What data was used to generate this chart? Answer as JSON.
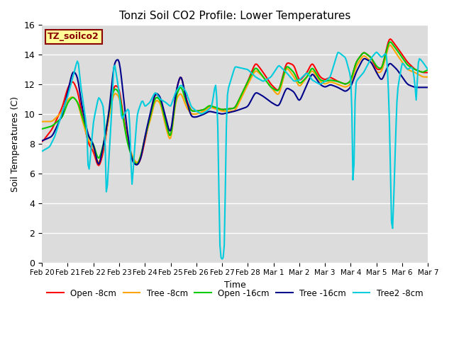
{
  "title": "Tonzi Soil CO2 Profile: Lower Temperatures",
  "xlabel": "Time",
  "ylabel": "Soil Temperatures (C)",
  "ylim": [
    0,
    16
  ],
  "annotation_text": "TZ_soilco2",
  "annotation_color": "#8B0000",
  "annotation_bg": "#FFFF99",
  "annotation_border": "#8B0000",
  "bg_color": "#DCDCDC",
  "legend_labels": [
    "Open -8cm",
    "Tree -8cm",
    "Open -16cm",
    "Tree -16cm",
    "Tree2 -8cm"
  ],
  "line_colors": [
    "#FF0000",
    "#FFA500",
    "#00CC00",
    "#00008B",
    "#00CCDD"
  ],
  "xtick_labels": [
    "Feb 20",
    "Feb 21",
    "Feb 22",
    "Feb 23",
    "Feb 24",
    "Feb 25",
    "Feb 26",
    "Feb 27",
    "Feb 28",
    "Mar 1",
    "Mar 2",
    "Mar 3",
    "Mar 4",
    "Mar 5",
    "Mar 6",
    "Mar 7"
  ]
}
